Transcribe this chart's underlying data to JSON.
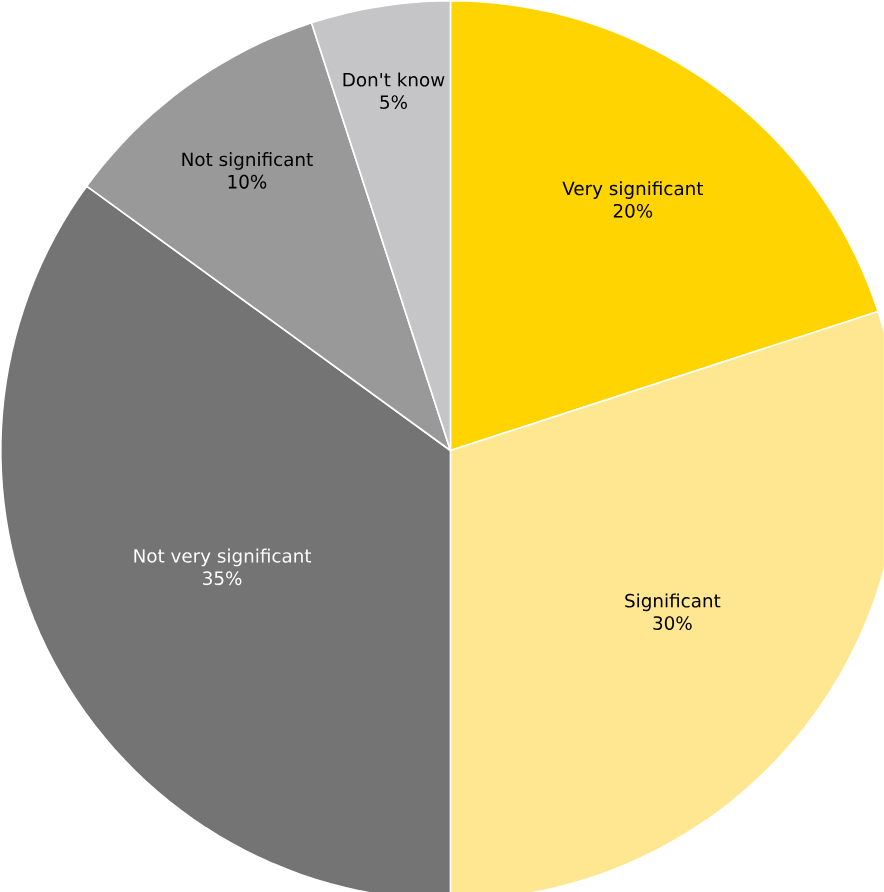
{
  "chart_data": {
    "type": "pie",
    "categories": [
      "Very significant",
      "Significant",
      "Not very significant",
      "Not significant",
      "Don't know"
    ],
    "values": [
      20,
      30,
      35,
      10,
      5
    ],
    "value_labels": [
      "20%",
      "30%",
      "35%",
      "10%",
      "5%"
    ],
    "colors": [
      "#ffd400",
      "#ffe690",
      "#747474",
      "#999999",
      "#c5c5c8"
    ]
  }
}
